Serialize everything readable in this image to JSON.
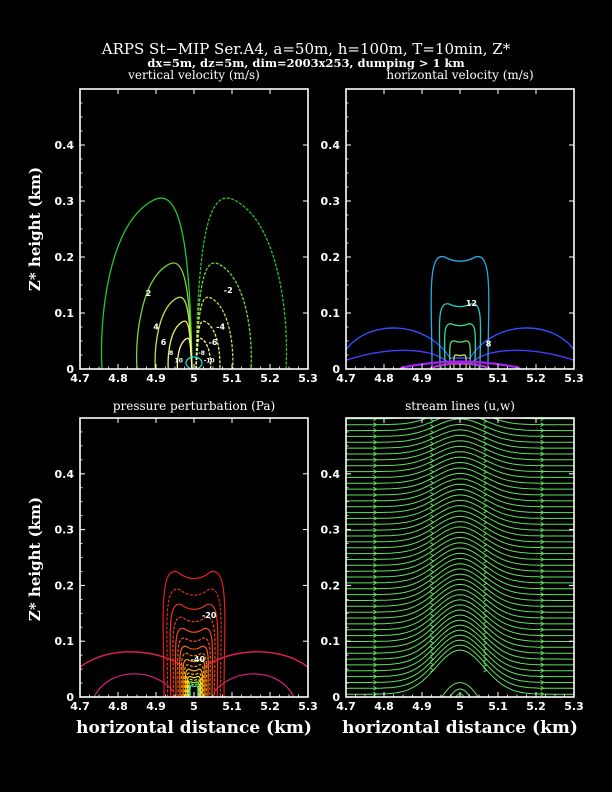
{
  "title": "ARPS St−MIP Ser.A4, a=50m, h=100m, T=10min, Z*",
  "subtitle": "dx=5m, dz=5m, dim=2003x253, dumping > 1 km",
  "colors": {
    "background": "#000000",
    "axes": "#ffffff"
  },
  "chart_data": [
    {
      "type": "contour",
      "title": "vertical velocity (m/s)",
      "xlabel": "",
      "ylabel": "Z* height (km)",
      "xlim": [
        4.7,
        5.3
      ],
      "ylim": [
        0,
        0.5
      ],
      "xticks": [
        "4.7",
        "4.8",
        "4.9",
        "5",
        "5.1",
        "5.2",
        "5.3"
      ],
      "yticks": [
        "0",
        "0.1",
        "0.2",
        "0.3",
        "0.4"
      ],
      "contour_labels": [
        "2",
        "-2",
        "4",
        "-4",
        "6",
        "-6",
        "8",
        "-8",
        "10",
        "-10"
      ]
    },
    {
      "type": "contour",
      "title": "horizontal velocity (m/s)",
      "xlabel": "",
      "ylabel": "",
      "xlim": [
        4.7,
        5.3
      ],
      "ylim": [
        0,
        0.5
      ],
      "xticks": [
        "4.7",
        "4.8",
        "4.9",
        "5",
        "5.1",
        "5.2",
        "5.3"
      ],
      "yticks": [
        "0",
        "0.1",
        "0.2",
        "0.3",
        "0.4"
      ],
      "contour_labels": [
        "12",
        "8"
      ]
    },
    {
      "type": "contour",
      "title": "pressure perturbation (Pa)",
      "xlabel": "horizontal distance (km)",
      "ylabel": "Z* height (km)",
      "xlim": [
        4.7,
        5.3
      ],
      "ylim": [
        0,
        0.5
      ],
      "xticks": [
        "4.7",
        "4.8",
        "4.9",
        "5",
        "5.1",
        "5.2",
        "5.3"
      ],
      "yticks": [
        "0",
        "0.1",
        "0.2",
        "0.3",
        "0.4"
      ],
      "contour_labels": [
        "-20",
        "-40"
      ]
    },
    {
      "type": "streamlines",
      "title": "stream lines (u,w)",
      "xlabel": "horizontal distance (km)",
      "ylabel": "",
      "xlim": [
        4.7,
        5.3
      ],
      "ylim": [
        0,
        0.5
      ],
      "xticks": [
        "4.7",
        "4.8",
        "4.9",
        "5",
        "5.1",
        "5.2",
        "5.3"
      ],
      "yticks": [
        "0",
        "0.1",
        "0.2",
        "0.3",
        "0.4"
      ],
      "contour_labels": []
    }
  ]
}
